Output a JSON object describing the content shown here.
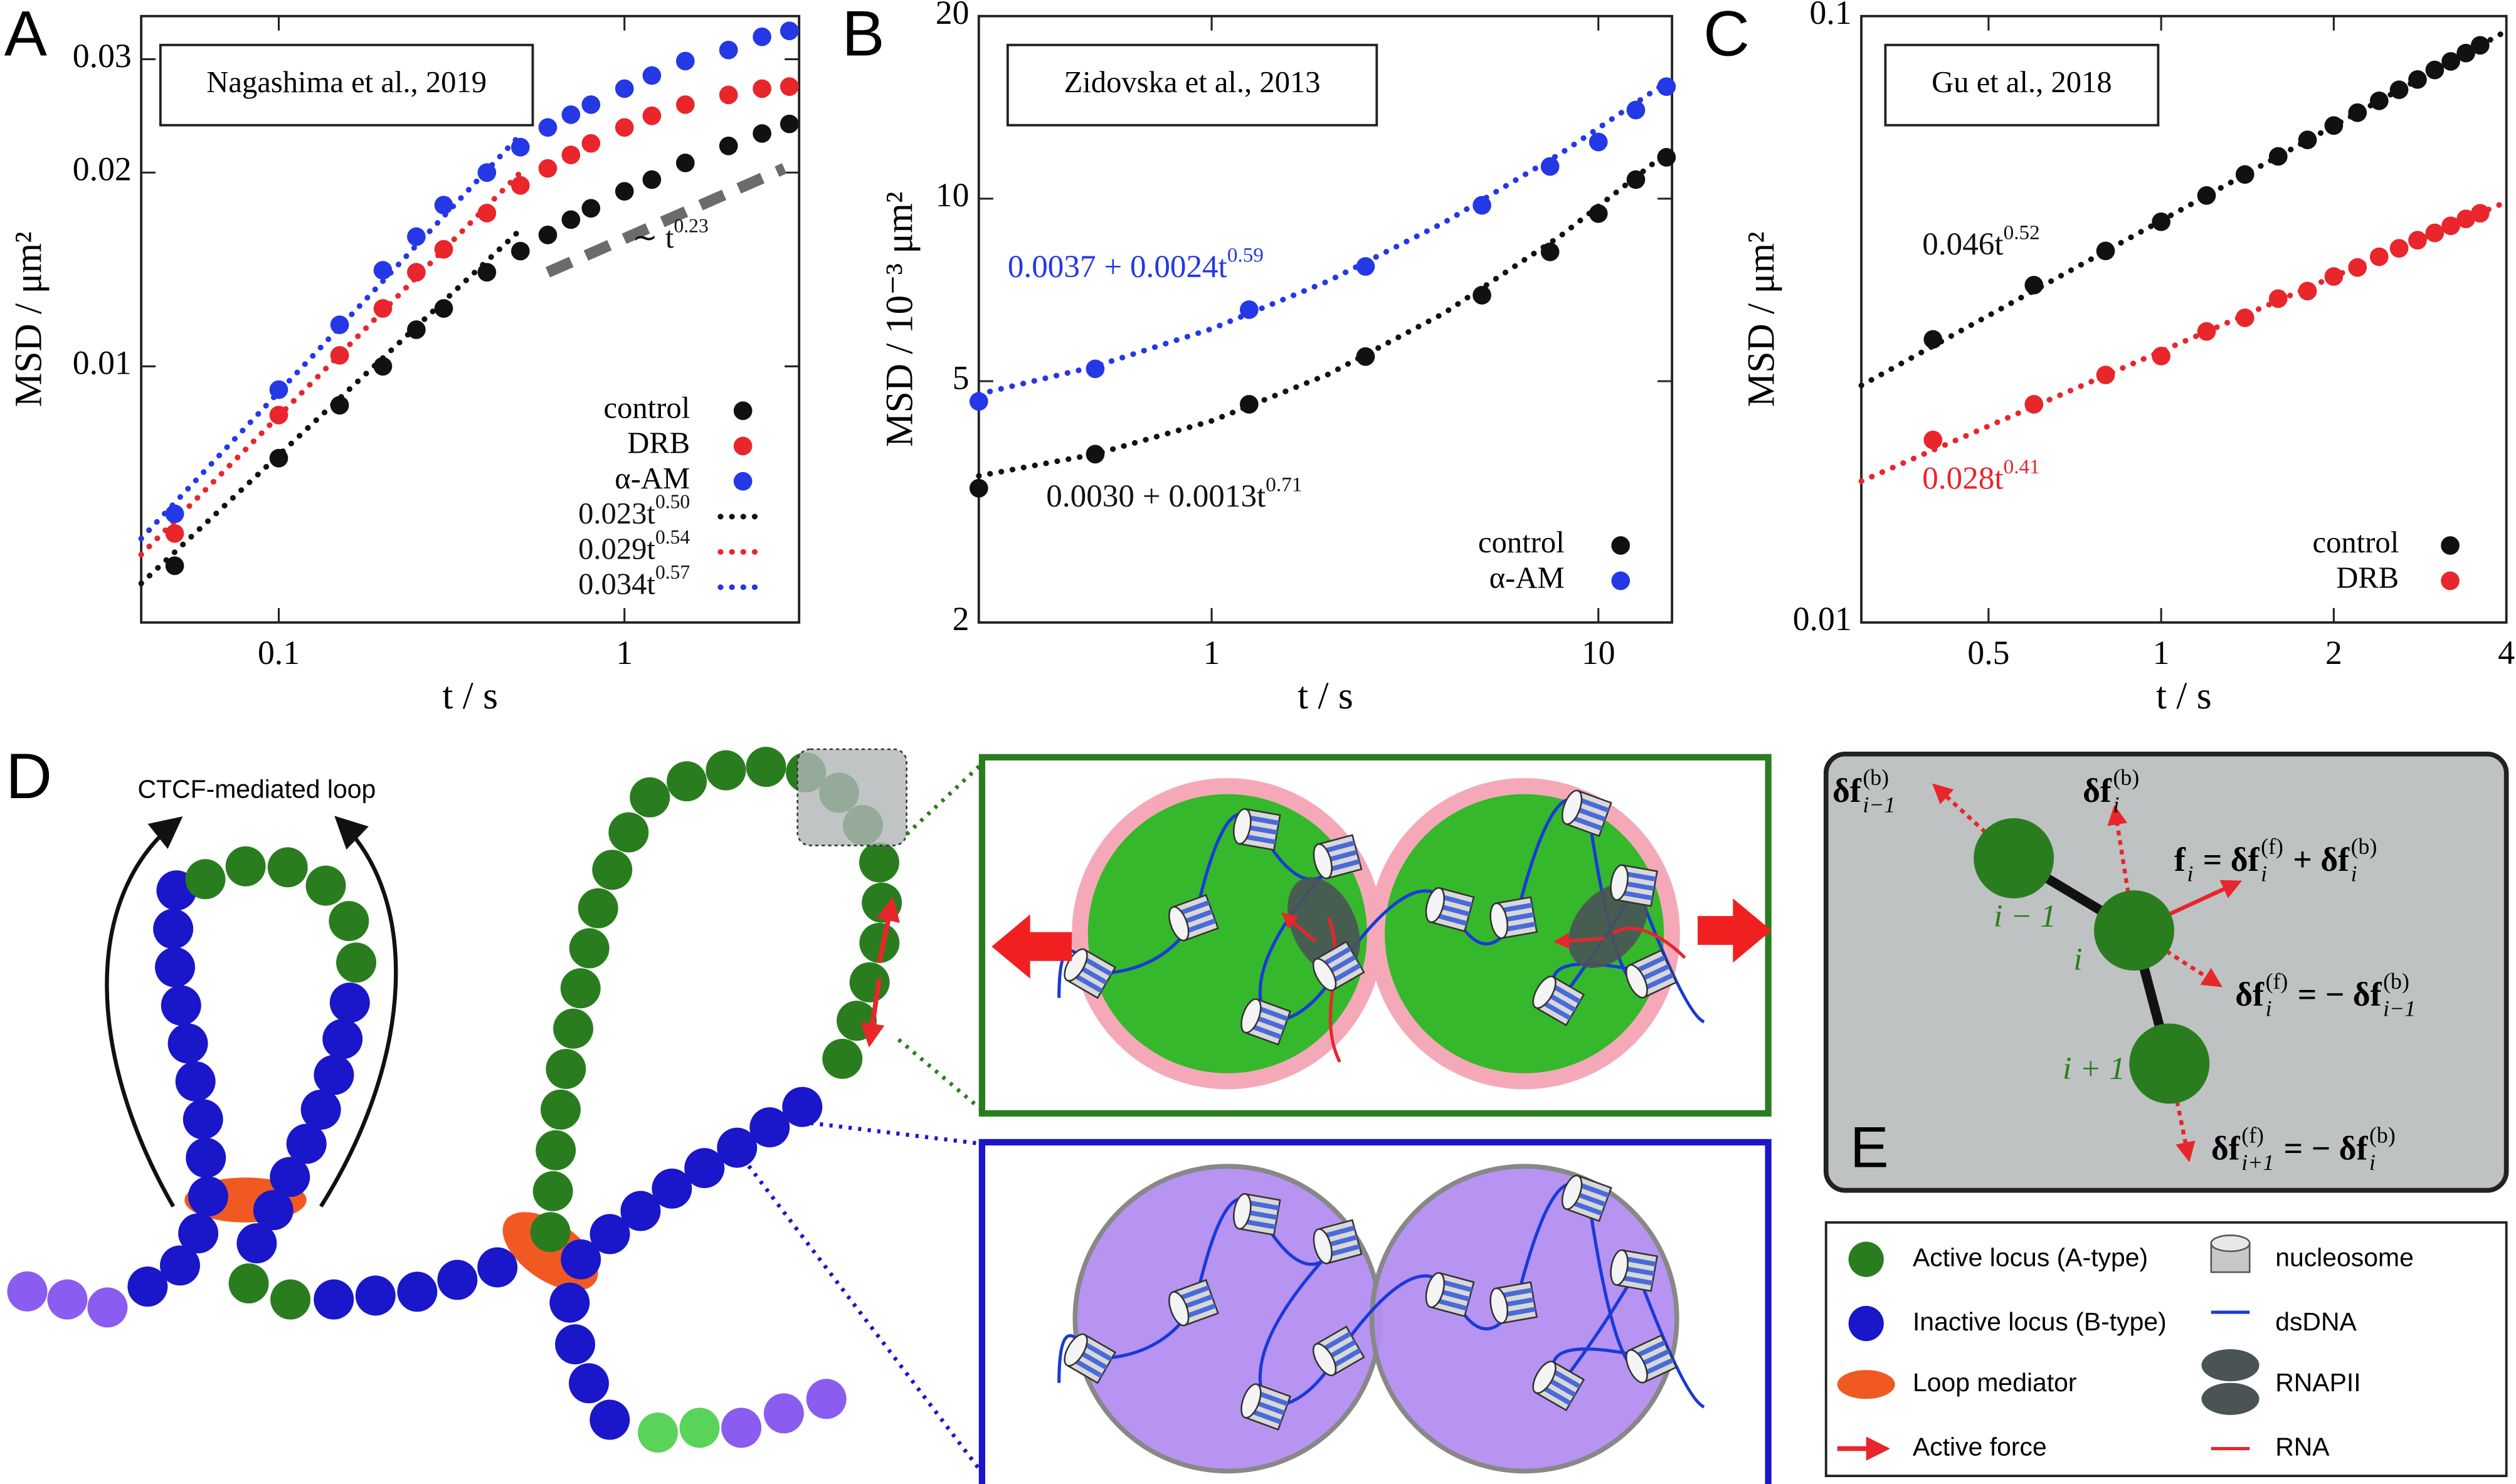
{
  "chart_data": [
    {
      "type": "scatter",
      "panel": "A",
      "title": "Nagashima et al., 2019",
      "x_label": "t / s",
      "y_label": "MSD / μm²",
      "log_x": true,
      "log_y": true,
      "xlim": [
        0.04,
        3.2
      ],
      "ylim": [
        0.004,
        0.035
      ],
      "xticks": [
        0.1,
        1
      ],
      "yticks": [
        0.01,
        0.02,
        0.03
      ],
      "x": [
        0.05,
        0.1,
        0.15,
        0.2,
        0.25,
        0.3,
        0.4,
        0.5,
        0.6,
        0.7,
        0.8,
        1,
        1.2,
        1.5,
        2,
        2.5,
        3
      ],
      "series": [
        {
          "name": "control",
          "color": "#111111",
          "values": [
            0.0049,
            0.0072,
            0.0087,
            0.01,
            0.0114,
            0.0123,
            0.014,
            0.0151,
            0.016,
            0.0169,
            0.0176,
            0.0187,
            0.0195,
            0.0207,
            0.022,
            0.023,
            0.0238
          ]
        },
        {
          "name": "DRB",
          "color": "#e8262b",
          "values": [
            0.0055,
            0.0084,
            0.0104,
            0.0123,
            0.014,
            0.0152,
            0.0173,
            0.0191,
            0.0203,
            0.0213,
            0.0222,
            0.0235,
            0.0245,
            0.0255,
            0.0264,
            0.027,
            0.0272
          ]
        },
        {
          "name": "α-AM",
          "color": "#2438e6",
          "values": [
            0.0059,
            0.0092,
            0.0116,
            0.0141,
            0.0159,
            0.0178,
            0.02,
            0.0219,
            0.0235,
            0.0246,
            0.0255,
            0.027,
            0.0283,
            0.0298,
            0.031,
            0.0325,
            0.0332
          ]
        }
      ],
      "fits": [
        {
          "name": "0.023t",
          "exponent": "0.50",
          "color": "#111111",
          "x": [
            0.04,
            0.5
          ],
          "values": [
            0.0046,
            0.0163
          ]
        },
        {
          "name": "0.029t",
          "exponent": "0.54",
          "color": "#e8262b",
          "x": [
            0.04,
            0.5
          ],
          "values": [
            0.0051,
            0.02
          ]
        },
        {
          "name": "0.034t",
          "exponent": "0.57",
          "color": "#2438e6",
          "x": [
            0.04,
            0.5
          ],
          "values": [
            0.0054,
            0.0229
          ]
        }
      ],
      "fit_legend": true,
      "guide": {
        "label": "∼ t",
        "exponent": "0.23",
        "color": "#6b6b6b",
        "x": [
          0.6,
          2.9
        ],
        "values": [
          0.014,
          0.0203
        ]
      }
    },
    {
      "type": "scatter",
      "panel": "B",
      "title": "Zidovska et al., 2013",
      "x_label": "t / s",
      "y_label": "MSD / 10⁻³ μm²",
      "log_x": true,
      "log_y": true,
      "xlim": [
        0.25,
        15.5
      ],
      "ylim": [
        2,
        20
      ],
      "xticks": [
        1,
        10
      ],
      "yticks": [
        2,
        5,
        10,
        20
      ],
      "x": [
        0.25,
        0.5,
        1.25,
        2.5,
        5,
        7.5,
        10,
        12.5,
        15
      ],
      "series": [
        {
          "name": "control",
          "color": "#111111",
          "values": [
            3.33,
            3.79,
            4.58,
            5.49,
            6.93,
            8.17,
            9.45,
            10.75,
            11.7
          ]
        },
        {
          "name": "α-AM",
          "color": "#2438e6",
          "values": [
            4.63,
            5.24,
            6.56,
            7.73,
            9.75,
            11.3,
            12.4,
            14.0,
            15.3
          ]
        }
      ],
      "fits": [
        {
          "name": "0.0037 + 0.0024t",
          "exponent": "0.59",
          "color": "#2438e6",
          "x": [
            0.25,
            0.5,
            1,
            2,
            4,
            8,
            15
          ],
          "values": [
            4.76,
            5.29,
            6.1,
            7.31,
            9.14,
            11.88,
            15.55
          ]
        },
        {
          "name": "0.0030 + 0.0013t",
          "exponent": "0.71",
          "color": "#111111",
          "x": [
            0.25,
            0.5,
            1,
            2,
            4,
            8,
            15
          ],
          "values": [
            3.49,
            3.79,
            4.3,
            5.13,
            6.48,
            8.69,
            11.89
          ]
        }
      ],
      "fit_legend": false
    },
    {
      "type": "scatter",
      "panel": "C",
      "title": "Gu et al., 2018",
      "x_label": "t / s",
      "y_label": "MSD / μm²",
      "log_x": true,
      "log_y": true,
      "xlim": [
        0.3,
        4
      ],
      "ylim": [
        0.01,
        0.1
      ],
      "xticks": [
        0.5,
        1,
        2,
        4
      ],
      "yticks": [
        0.01,
        0.1
      ],
      "x": [
        0.4,
        0.6,
        0.8,
        1.0,
        1.2,
        1.4,
        1.6,
        1.8,
        2.0,
        2.2,
        2.4,
        2.6,
        2.8,
        3.0,
        3.2,
        3.4,
        3.6
      ],
      "series": [
        {
          "name": "control",
          "color": "#111111",
          "values": [
            0.0293,
            0.036,
            0.041,
            0.0458,
            0.0506,
            0.0548,
            0.0587,
            0.0625,
            0.066,
            0.0693,
            0.0725,
            0.0756,
            0.0786,
            0.0815,
            0.0842,
            0.0869,
            0.0895
          ]
        },
        {
          "name": "DRB",
          "color": "#e8262b",
          "values": [
            0.02,
            0.0229,
            0.0256,
            0.0275,
            0.0302,
            0.0318,
            0.0342,
            0.0352,
            0.0372,
            0.0385,
            0.0401,
            0.0414,
            0.0427,
            0.0439,
            0.0451,
            0.0463,
            0.0473
          ]
        }
      ],
      "fits": [
        {
          "name": "0.046t",
          "exponent": "0.52",
          "color": "#111111",
          "x": [
            0.3,
            4
          ],
          "values": [
            0.0246,
            0.0945
          ]
        },
        {
          "name": "0.028t",
          "exponent": "0.41",
          "color": "#e8262b",
          "x": [
            0.3,
            4
          ],
          "values": [
            0.0171,
            0.0494
          ]
        }
      ],
      "fit_legend": false
    }
  ],
  "diagram": {
    "panel_d": "D",
    "panel_e": "E",
    "loop_label": "CTCF-mediated loop",
    "index_labels": [
      "i − 1",
      "i",
      "i + 1"
    ],
    "force_labels": [
      {
        "terms": [
          {
            "base": "δf",
            "sub": "i−1",
            "sup": "(b)"
          }
        ]
      },
      {
        "terms": [
          {
            "base": "δf",
            "sub": "i",
            "sup": "(b)"
          }
        ]
      },
      {
        "terms": [
          {
            "base": "f",
            "sub": "i"
          },
          {
            "base": "= δf",
            "sub": "i",
            "sup": "(f)"
          },
          {
            "base": "+ δf",
            "sub": "i",
            "sup": "(b)"
          }
        ]
      },
      {
        "terms": [
          {
            "base": "δf",
            "sub": "i",
            "sup": "(f)"
          },
          {
            "base": "= − δf",
            "sub": "i−1",
            "sup": "(b)"
          }
        ]
      },
      {
        "terms": [
          {
            "base": "δf",
            "sub": "i+1",
            "sup": "(f)"
          },
          {
            "base": "= − δf",
            "sub": "i",
            "sup": "(b)"
          }
        ]
      }
    ],
    "legend_items": [
      "Active locus (A-type)",
      "Inactive locus (B-type)",
      "Loop mediator",
      "Active force",
      "nucleosome",
      "dsDNA",
      "RNAPII",
      "RNA"
    ]
  }
}
